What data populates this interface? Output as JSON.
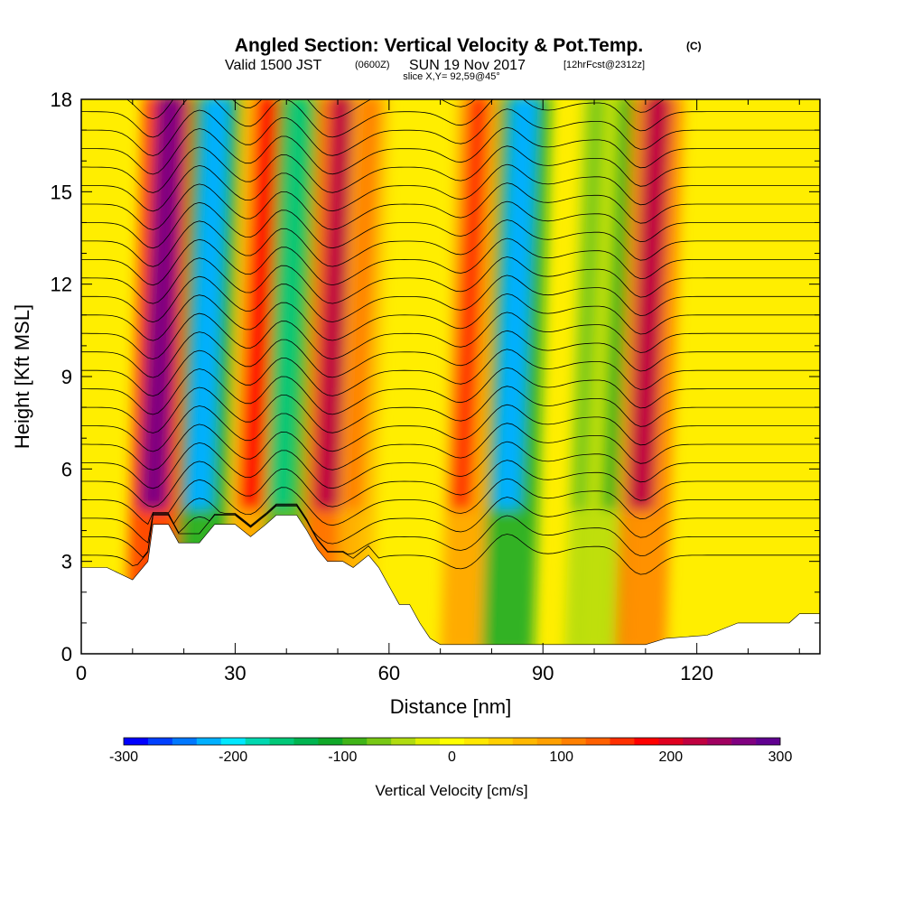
{
  "title": {
    "main": "Angled Section: Vertical Velocity & Pot.Temp.",
    "units": "(C)",
    "valid_prefix": "Valid 1500 JST",
    "valid_utc": "(0600Z)",
    "valid_date": "SUN 19 Nov 2017",
    "forecast": "[12hrFcst@2312z]",
    "slice": "slice X,Y= 92,59@45°"
  },
  "axes": {
    "xlabel": "Distance [nm]",
    "ylabel": "Height [Kft MSL]",
    "xlim": [
      0,
      144
    ],
    "ylim": [
      0,
      18
    ],
    "xticks": [
      "0",
      "30",
      "60",
      "90",
      "120"
    ],
    "yticks": [
      "0",
      "3",
      "6",
      "9",
      "12",
      "15",
      "18"
    ]
  },
  "colorbar": {
    "label": "Vertical Velocity [cm/s]",
    "ticks": [
      "-300",
      "-200",
      "-100",
      "0",
      "100",
      "200",
      "300"
    ],
    "colors": [
      "#0000ff",
      "#0040ff",
      "#0078ff",
      "#00b0ff",
      "#00e8ff",
      "#00d8b0",
      "#00c878",
      "#00b450",
      "#10a828",
      "#40b418",
      "#78c814",
      "#b0dc10",
      "#e0f000",
      "#ffff00",
      "#ffe800",
      "#ffd000",
      "#ffb800",
      "#ffa000",
      "#ff8000",
      "#ff6000",
      "#ff3000",
      "#ff0000",
      "#e00020",
      "#c00040",
      "#a00060",
      "#800080",
      "#600090"
    ]
  },
  "chart_data": {
    "type": "heatmap",
    "field": "Vertical Velocity",
    "units": "cm/s",
    "overlay": "Potential temperature contours (C)",
    "x_range_nm": [
      0,
      144
    ],
    "y_range_kft": [
      0,
      18
    ],
    "vmin": -300,
    "vmax": 300,
    "features": [
      {
        "x": 14,
        "value": 280
      },
      {
        "x": 23,
        "value": -220
      },
      {
        "x": 33,
        "value": 180
      },
      {
        "x": 39,
        "value": -160
      },
      {
        "x": 48,
        "value": 240
      },
      {
        "x": 53,
        "value": 120
      },
      {
        "x": 74,
        "value": 150
      },
      {
        "x": 83,
        "value": -230
      },
      {
        "x": 97,
        "value": -70
      },
      {
        "x": 103,
        "value": -90
      },
      {
        "x": 109,
        "value": 220
      }
    ],
    "terrain": [
      [
        0,
        2.8
      ],
      [
        5,
        2.8
      ],
      [
        10,
        2.4
      ],
      [
        13,
        3
      ],
      [
        14,
        4.2
      ],
      [
        17,
        4.2
      ],
      [
        19,
        3.6
      ],
      [
        23,
        3.6
      ],
      [
        26,
        4.2
      ],
      [
        30,
        4.2
      ],
      [
        33,
        3.8
      ],
      [
        36,
        4.2
      ],
      [
        38,
        4.5
      ],
      [
        42,
        4.5
      ],
      [
        44,
        4
      ],
      [
        46,
        3.4
      ],
      [
        48,
        3
      ],
      [
        51,
        3
      ],
      [
        53,
        2.8
      ],
      [
        56,
        3.2
      ],
      [
        58,
        2.8
      ],
      [
        60,
        2.2
      ],
      [
        62,
        1.6
      ],
      [
        64,
        1.6
      ],
      [
        66,
        1
      ],
      [
        68,
        0.5
      ],
      [
        70,
        0.3
      ],
      [
        78,
        0.3
      ],
      [
        85,
        0.3
      ],
      [
        110,
        0.3
      ],
      [
        114,
        0.5
      ],
      [
        122,
        0.6
      ],
      [
        128,
        1
      ],
      [
        138,
        1
      ],
      [
        140,
        1.3
      ],
      [
        144,
        1.3
      ]
    ]
  }
}
